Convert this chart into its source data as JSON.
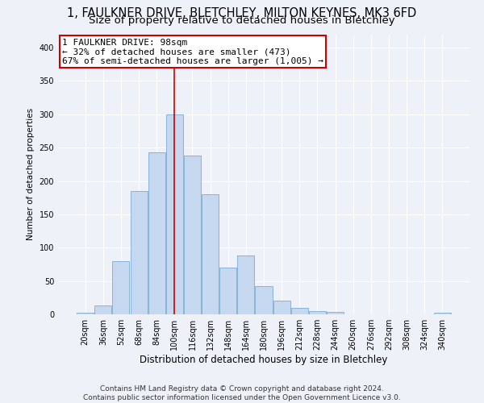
{
  "title_line1": "1, FAULKNER DRIVE, BLETCHLEY, MILTON KEYNES, MK3 6FD",
  "title_line2": "Size of property relative to detached houses in Bletchley",
  "xlabel": "Distribution of detached houses by size in Bletchley",
  "ylabel": "Number of detached properties",
  "footer_line1": "Contains HM Land Registry data © Crown copyright and database right 2024.",
  "footer_line2": "Contains public sector information licensed under the Open Government Licence v3.0.",
  "bar_labels": [
    "20sqm",
    "36sqm",
    "52sqm",
    "68sqm",
    "84sqm",
    "100sqm",
    "116sqm",
    "132sqm",
    "148sqm",
    "164sqm",
    "180sqm",
    "196sqm",
    "212sqm",
    "228sqm",
    "244sqm",
    "260sqm",
    "276sqm",
    "292sqm",
    "308sqm",
    "324sqm",
    "340sqm"
  ],
  "bar_values": [
    3,
    13,
    80,
    185,
    243,
    300,
    238,
    180,
    70,
    88,
    42,
    20,
    10,
    5,
    4,
    0,
    0,
    0,
    0,
    0,
    2
  ],
  "bar_color": "#c5d8f0",
  "bar_edge_color": "#7aadd4",
  "annotation_label": "1 FAULKNER DRIVE: 98sqm",
  "annotation_line2": "← 32% of detached houses are smaller (473)",
  "annotation_line3": "67% of semi-detached houses are larger (1,005) →",
  "vline_x": 5.0,
  "vline_color": "#cc0000",
  "annotation_box_facecolor": "#ffffff",
  "annotation_box_edgecolor": "#cc0000",
  "ylim": [
    0,
    420
  ],
  "yticks": [
    0,
    50,
    100,
    150,
    200,
    250,
    300,
    350,
    400
  ],
  "bg_color": "#eef2f8",
  "grid_color": "#ffffff",
  "title1_fontsize": 10.5,
  "title2_fontsize": 9.5,
  "xlabel_fontsize": 8.5,
  "ylabel_fontsize": 7.5,
  "tick_fontsize": 7,
  "annotation_fontsize": 8,
  "footer_fontsize": 6.5
}
